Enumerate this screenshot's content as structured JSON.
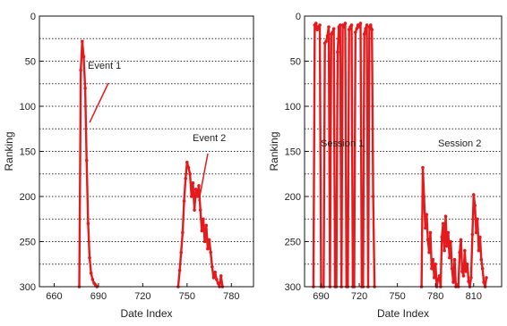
{
  "chart_data": [
    {
      "type": "line",
      "xlabel": "Date Index",
      "ylabel": "Ranking",
      "xlim": [
        650,
        795
      ],
      "ylim": [
        0,
        300
      ],
      "y_reversed": true,
      "xticks": [
        660,
        690,
        720,
        750,
        780
      ],
      "yticks": [
        0,
        50,
        100,
        150,
        200,
        250,
        300
      ],
      "grid": "horizontal dotted",
      "color": "#e41a1c",
      "annotations": [
        {
          "text": "Event 1",
          "target_x": 684,
          "target_y": 118
        },
        {
          "text": "Event 2",
          "target_x": 758,
          "target_y": 205
        }
      ],
      "series": [
        {
          "x": [
            677,
            678,
            679,
            680,
            681,
            682,
            683,
            684,
            685,
            686,
            687,
            688,
            689
          ],
          "y": [
            300,
            60,
            28,
            45,
            80,
            160,
            230,
            268,
            285,
            292,
            296,
            298,
            300
          ]
        },
        {
          "x": [
            744,
            745,
            746,
            747,
            748,
            749,
            750,
            751,
            752,
            753,
            754,
            755,
            756,
            757,
            758,
            759,
            760,
            761,
            762,
            763,
            764,
            765,
            766,
            767,
            768,
            769,
            770,
            771,
            772,
            773,
            774
          ],
          "y": [
            300,
            282,
            262,
            240,
            205,
            180,
            162,
            168,
            175,
            200,
            185,
            215,
            192,
            200,
            188,
            215,
            238,
            225,
            250,
            232,
            258,
            248,
            262,
            278,
            290,
            284,
            292,
            296,
            300,
            288,
            300
          ]
        }
      ]
    },
    {
      "type": "line",
      "xlabel": "Date Index",
      "ylabel": "Ranking",
      "xlim": [
        677,
        832
      ],
      "ylim": [
        0,
        300
      ],
      "y_reversed": true,
      "xticks": [
        690,
        720,
        750,
        780,
        810
      ],
      "yticks": [
        0,
        50,
        100,
        150,
        200,
        250,
        300
      ],
      "grid": "horizontal dotted",
      "color": "#e41a1c",
      "annotations": [
        {
          "text": "Session 1",
          "target_x": 712,
          "target_y": 155
        },
        {
          "text": "Session 2",
          "target_x": 782,
          "target_y": 155
        }
      ],
      "series": [
        {
          "x": [
            684,
            685,
            686,
            687,
            688,
            689,
            690,
            692,
            693,
            694,
            695,
            696,
            697,
            698,
            699,
            700,
            701,
            702,
            703,
            704,
            705,
            706,
            707,
            708,
            709,
            710,
            711,
            712,
            713,
            714,
            715,
            716,
            717,
            718,
            719,
            720,
            721,
            722,
            723,
            724,
            725,
            726,
            727,
            728,
            729,
            730,
            731,
            732
          ],
          "y": [
            300,
            10,
            8,
            15,
            12,
            10,
            300,
            300,
            30,
            28,
            22,
            12,
            300,
            20,
            18,
            14,
            300,
            300,
            40,
            12,
            10,
            300,
            10,
            12,
            8,
            300,
            300,
            15,
            12,
            10,
            300,
            300,
            18,
            14,
            10,
            12,
            8,
            300,
            300,
            20,
            14,
            10,
            300,
            12,
            10,
            15,
            200,
            300
          ]
        },
        {
          "x": [
            769,
            770,
            771,
            772,
            773,
            774,
            775,
            776,
            777,
            778,
            779,
            780,
            781,
            782,
            783,
            784,
            785,
            786,
            787,
            788,
            789,
            790,
            791,
            792,
            793,
            794,
            795,
            796,
            797,
            798,
            799,
            800,
            801,
            802,
            803,
            804,
            805,
            806,
            807,
            808,
            809,
            810,
            811,
            812,
            813,
            814,
            815,
            816,
            817,
            818,
            819,
            820
          ],
          "y": [
            300,
            168,
            200,
            235,
            220,
            248,
            262,
            240,
            280,
            270,
            290,
            275,
            300,
            292,
            288,
            300,
            245,
            230,
            260,
            222,
            255,
            240,
            268,
            250,
            280,
            295,
            270,
            300,
            298,
            300,
            262,
            248,
            283,
            288,
            260,
            283,
            275,
            294,
            300,
            290,
            242,
            198,
            210,
            240,
            225,
            260,
            245,
            270,
            280,
            295,
            300,
            290
          ]
        }
      ]
    }
  ]
}
